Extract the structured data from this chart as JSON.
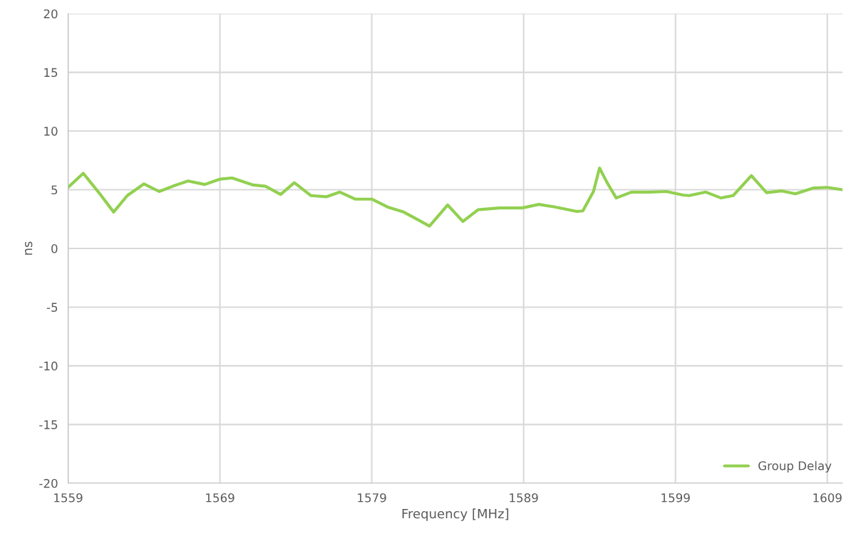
{
  "chart_data": {
    "type": "line",
    "xlabel": "Frequency [MHz]",
    "ylabel": "ns",
    "x": [
      1559,
      1560,
      1561,
      1562,
      1562.9,
      1564,
      1565,
      1565.9,
      1566.9,
      1568,
      1569,
      1569.8,
      1571.2,
      1572,
      1573,
      1573.9,
      1575,
      1576,
      1576.9,
      1577.9,
      1579,
      1580.1,
      1581.1,
      1582.1,
      1582.8,
      1584,
      1585,
      1586,
      1587.4,
      1588.9,
      1590,
      1591,
      1592.5,
      1592.9,
      1593.6,
      1594,
      1594.5,
      1595.1,
      1596.1,
      1597.3,
      1598.4,
      1599.5,
      1599.9,
      1601,
      1602,
      1602.8,
      1604,
      1605,
      1606,
      1606.9,
      1608.1,
      1609,
      1610
    ],
    "series": [
      {
        "name": "Group Delay",
        "color": "#92d050",
        "values": [
          5.2,
          6.4,
          4.8,
          3.1,
          4.5,
          5.5,
          4.85,
          5.3,
          5.75,
          5.45,
          5.9,
          6.0,
          5.4,
          5.3,
          4.6,
          5.6,
          4.5,
          4.4,
          4.8,
          4.2,
          4.2,
          3.5,
          3.1,
          2.4,
          1.9,
          3.7,
          2.3,
          3.3,
          3.45,
          3.45,
          3.75,
          3.55,
          3.15,
          3.2,
          4.85,
          6.85,
          5.6,
          4.3,
          4.8,
          4.8,
          4.85,
          4.55,
          4.5,
          4.8,
          4.3,
          4.5,
          6.2,
          4.75,
          4.9,
          4.65,
          5.15,
          5.2,
          5.0
        ]
      }
    ],
    "xlim": [
      1559,
      1610
    ],
    "xticks": [
      1559,
      1569,
      1579,
      1589,
      1599,
      1609
    ],
    "ylim": [
      -20,
      20
    ],
    "yticks": [
      -20,
      -15,
      -10,
      -5,
      0,
      5,
      10,
      15,
      20
    ],
    "grid": true,
    "legend": "lower right",
    "marker": "none",
    "line_style": "solid"
  }
}
